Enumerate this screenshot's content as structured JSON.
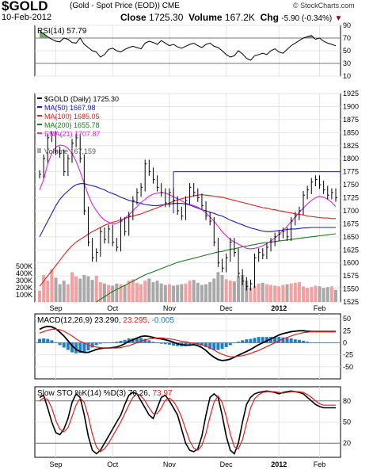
{
  "header": {
    "symbol": "$GOLD",
    "name": "(Gold - Spot Price (EOD))",
    "exchange": "CME",
    "credit": "© StockCharts.com",
    "date": "10-Feb-2012",
    "close_label": "Close",
    "close_value": "1725.30",
    "volume_label": "Volume",
    "volume_value": "167.2K",
    "chg_label": "Chg",
    "chg_value": "-5.90 (-0.34%)"
  },
  "colors": {
    "price": "#000000",
    "ma50": "#1c1cb8",
    "ma100": "#e02020",
    "ma200": "#1a7a1a",
    "ema21": "#e020e0",
    "volume_up": "#f4a0a0",
    "volume_down": "#a8a8a8",
    "histogram": "#1e7ec8",
    "macd_line": "#000000",
    "signal_line": "#e02020",
    "stoch_k": "#000000",
    "stoch_d": "#e02020",
    "down_arrow": "#8b0033"
  },
  "x_axis": {
    "month_labels": [
      "Sep",
      "Oct",
      "Nov",
      "Dec",
      "2012",
      "Feb"
    ]
  },
  "chart_data": [
    {
      "panel": "rsi",
      "type": "line",
      "title": "RSI(14) 57.79",
      "ylim": [
        10,
        90
      ],
      "yticks": [
        90,
        70,
        50,
        30,
        10
      ],
      "reference_lines": [
        70,
        30
      ],
      "values": [
        80,
        77,
        72,
        68,
        65,
        64,
        70,
        68,
        63,
        62,
        70,
        60,
        55,
        50,
        48,
        40,
        44,
        52,
        54,
        50,
        48,
        52,
        55,
        57,
        55,
        53,
        62,
        65,
        63,
        60,
        66,
        62,
        58,
        60,
        56,
        54,
        57,
        60,
        62,
        58,
        55,
        60,
        62,
        57,
        55,
        50,
        44,
        40,
        42,
        50,
        45,
        38,
        35,
        42,
        44,
        46,
        44,
        50,
        53,
        48,
        46,
        52,
        58,
        62,
        66,
        70,
        72,
        74,
        68,
        70,
        65,
        62,
        60,
        57.79
      ]
    },
    {
      "panel": "price",
      "type": "line",
      "title": "$GOLD (Daily) 1725.30",
      "ylim": [
        1525,
        1925
      ],
      "yticks": [
        1925,
        1900,
        1875,
        1850,
        1825,
        1800,
        1775,
        1750,
        1725,
        1700,
        1675,
        1650,
        1625,
        1600,
        1575,
        1550,
        1525
      ],
      "volume_ticks": [
        "500K",
        "400K",
        "300K",
        "200K",
        "100K"
      ],
      "horizontal_lines": [
        1775,
        1695
      ],
      "series": [
        {
          "name": "MA(50) 1667.98",
          "key": "ma50",
          "values": [
            1650,
            1665,
            1680,
            1695,
            1710,
            1722,
            1731,
            1738,
            1745,
            1750,
            1752,
            1752,
            1750,
            1748,
            1746,
            1743,
            1740,
            1736,
            1733,
            1730,
            1726,
            1723,
            1720,
            1718,
            1716,
            1714,
            1712,
            1711,
            1710,
            1710,
            1711,
            1712,
            1713,
            1714,
            1714,
            1714,
            1713,
            1711,
            1708,
            1705,
            1702,
            1700,
            1697,
            1695,
            1692,
            1690,
            1686,
            1682,
            1679,
            1676,
            1673,
            1670,
            1667,
            1665,
            1663,
            1661,
            1660,
            1660,
            1661,
            1662,
            1663,
            1664,
            1665,
            1665,
            1666,
            1667,
            1667,
            1668,
            1668,
            1668,
            1668,
            1668,
            1668,
            1667.98
          ]
        },
        {
          "name": "MA(100) 1685.05",
          "key": "ma100",
          "values": [
            1555,
            1565,
            1575,
            1585,
            1595,
            1605,
            1615,
            1625,
            1633,
            1640,
            1645,
            1650,
            1655,
            1660,
            1664,
            1668,
            1672,
            1675,
            1678,
            1680,
            1683,
            1685,
            1688,
            1690,
            1692,
            1694,
            1697,
            1700,
            1703,
            1706,
            1709,
            1712,
            1715,
            1718,
            1721,
            1723,
            1725,
            1727,
            1729,
            1730,
            1731,
            1730,
            1729,
            1728,
            1727,
            1726,
            1724,
            1722,
            1720,
            1718,
            1716,
            1714,
            1712,
            1710,
            1708,
            1706,
            1705,
            1703,
            1702,
            1700,
            1699,
            1697,
            1696,
            1694,
            1693,
            1692,
            1690,
            1689,
            1688,
            1687,
            1686,
            1686,
            1685,
            1685.05
          ]
        },
        {
          "name": "MA(200) 1655.78",
          "key": "ma200",
          "values": [
            null,
            null,
            null,
            null,
            null,
            null,
            null,
            null,
            null,
            null,
            null,
            null,
            null,
            null,
            1525,
            1530,
            1535,
            1540,
            1545,
            1549,
            1553,
            1557,
            1561,
            1565,
            1569,
            1573,
            1577,
            1580,
            1583,
            1586,
            1589,
            1592,
            1595,
            1598,
            1601,
            1603,
            1605,
            1607,
            1609,
            1611,
            1613,
            1615,
            1617,
            1619,
            1621,
            1622,
            1624,
            1626,
            1627,
            1629,
            1631,
            1632,
            1634,
            1635,
            1637,
            1638,
            1639,
            1640,
            1641,
            1642,
            1643,
            1644,
            1645,
            1646,
            1647,
            1648,
            1649,
            1650,
            1651,
            1652,
            1653,
            1654,
            1655,
            1655.78
          ]
        },
        {
          "name": "EMA(21) 1707.87",
          "key": "ema21",
          "values": [
            1740,
            1760,
            1790,
            1810,
            1822,
            1826,
            1825,
            1820,
            1810,
            1795,
            1775,
            1752,
            1730,
            1712,
            1700,
            1690,
            1682,
            1678,
            1675,
            1676,
            1680,
            1686,
            1692,
            1700,
            1708,
            1716,
            1722,
            1728,
            1732,
            1734,
            1735,
            1734,
            1731,
            1727,
            1723,
            1719,
            1715,
            1712,
            1710,
            1707,
            1702,
            1696,
            1688,
            1680,
            1670,
            1660,
            1652,
            1645,
            1640,
            1636,
            1632,
            1628,
            1627,
            1628,
            1630,
            1633,
            1637,
            1642,
            1648,
            1655,
            1662,
            1670,
            1679,
            1688,
            1697,
            1705,
            1713,
            1720,
            1725,
            1728,
            1726,
            1722,
            1716,
            1707.87
          ]
        }
      ],
      "price": [
        1770,
        1800,
        1840,
        1845,
        1815,
        1810,
        1775,
        1800,
        1830,
        1840,
        1800,
        1700,
        1640,
        1610,
        1620,
        1660,
        1645,
        1665,
        1640,
        1630,
        1680,
        1660,
        1690,
        1720,
        1735,
        1745,
        1790,
        1775,
        1760,
        1745,
        1735,
        1715,
        1735,
        1720,
        1700,
        1690,
        1720,
        1745,
        1735,
        1725,
        1710,
        1690,
        1680,
        1640,
        1600,
        1590,
        1610,
        1640,
        1620,
        1580,
        1565,
        1555,
        1560,
        1610,
        1620,
        1615,
        1630,
        1640,
        1650,
        1655,
        1660,
        1650,
        1680,
        1690,
        1700,
        1730,
        1740,
        1755,
        1760,
        1750,
        1740,
        1730,
        1735,
        1725.3
      ],
      "volume": [
        160,
        380,
        300,
        460,
        340,
        250,
        300,
        250,
        420,
        360,
        330,
        380,
        360,
        310,
        370,
        280,
        260,
        240,
        230,
        260,
        250,
        240,
        300,
        320,
        270,
        250,
        300,
        330,
        280,
        300,
        260,
        240,
        250,
        230,
        240,
        250,
        260,
        300,
        310,
        270,
        240,
        250,
        280,
        330,
        420,
        380,
        320,
        300,
        290,
        360,
        380,
        300,
        200,
        230,
        260,
        270,
        250,
        240,
        230,
        220,
        240,
        250,
        260,
        270,
        280,
        220,
        200,
        210,
        230,
        220,
        200,
        210,
        220,
        167.159
      ],
      "legend_extra": "Volume 167,159"
    },
    {
      "panel": "macd",
      "type": "line",
      "title": "MACD(12,26,9)",
      "title_values": [
        "23.290",
        "23.295",
        "-0.005"
      ],
      "ylim": [
        -75,
        60
      ],
      "yticks": [
        50,
        25,
        0,
        -25,
        -50
      ],
      "series": [
        {
          "name": "MACD",
          "key": "macd_line",
          "values": [
            28,
            32,
            34,
            33,
            29,
            22,
            14,
            4,
            -6,
            -14,
            -18,
            -20,
            -20,
            -17,
            -14,
            -12,
            -11,
            -11,
            -10,
            -9,
            -6,
            -2,
            3,
            6,
            10,
            13,
            14,
            13,
            11,
            9,
            8,
            6,
            4,
            1,
            -2,
            -4,
            -5,
            -5,
            -4,
            -6,
            -10,
            -16,
            -24,
            -30,
            -35,
            -37,
            -36,
            -34,
            -30,
            -26,
            -22,
            -18,
            -14,
            -9,
            -4,
            0,
            4,
            8,
            12,
            16,
            19,
            21,
            23,
            24,
            25,
            25,
            24,
            23.29,
            23.29,
            23.29,
            23.29,
            23.29,
            23.29,
            23.29
          ]
        },
        {
          "name": "Signal",
          "key": "signal_line",
          "values": [
            20,
            23,
            26,
            28,
            28,
            27,
            24,
            19,
            14,
            8,
            3,
            -1,
            -4,
            -7,
            -9,
            -10,
            -11,
            -11,
            -11,
            -11,
            -10,
            -8,
            -6,
            -3,
            0,
            3,
            6,
            8,
            9,
            10,
            10,
            9,
            8,
            7,
            5,
            3,
            2,
            0,
            -1,
            -2,
            -4,
            -7,
            -11,
            -15,
            -20,
            -24,
            -27,
            -29,
            -29,
            -28,
            -27,
            -25,
            -22,
            -19,
            -16,
            -12,
            -8,
            -4,
            0,
            4,
            8,
            11,
            14,
            17,
            19,
            21,
            22,
            23,
            23.295,
            23.295,
            23.295,
            23.295,
            23.295,
            23.295
          ]
        },
        {
          "name": "Histogram",
          "key": "histogram",
          "values": [
            8,
            9,
            8,
            5,
            1,
            -5,
            -10,
            -15,
            -20,
            -22,
            -21,
            -19,
            -16,
            -10,
            -5,
            -2,
            0,
            0,
            1,
            2,
            4,
            6,
            9,
            9,
            10,
            10,
            8,
            5,
            2,
            -1,
            -2,
            -3,
            -4,
            -6,
            -7,
            -7,
            -7,
            -5,
            -3,
            -4,
            -6,
            -9,
            -13,
            -15,
            -15,
            -13,
            -9,
            -5,
            -1,
            2,
            5,
            7,
            8,
            10,
            12,
            12,
            12,
            12,
            12,
            12,
            11,
            10,
            9,
            7,
            6,
            4,
            2,
            0,
            0,
            0,
            0,
            0,
            0,
            -0.005
          ]
        }
      ]
    },
    {
      "panel": "stochastic",
      "type": "line",
      "title": "Slow STO %K(14) %D(3)",
      "title_values": [
        "70.26",
        "73.97"
      ],
      "ylim": [
        0,
        100
      ],
      "yticks": [
        80,
        50,
        20
      ],
      "reference_lines": [
        80,
        20
      ],
      "series": [
        {
          "name": "%K",
          "key": "stoch_k",
          "values": [
            85,
            88,
            70,
            50,
            35,
            32,
            40,
            55,
            78,
            90,
            85,
            60,
            30,
            10,
            5,
            10,
            20,
            30,
            40,
            50,
            60,
            75,
            88,
            92,
            90,
            80,
            70,
            60,
            55,
            70,
            85,
            88,
            80,
            70,
            60,
            40,
            20,
            10,
            8,
            12,
            30,
            60,
            85,
            90,
            85,
            60,
            30,
            10,
            5,
            20,
            50,
            75,
            85,
            90,
            92,
            93,
            94,
            93,
            92,
            90,
            92,
            93,
            94,
            93,
            92,
            90,
            85,
            80,
            75,
            72,
            70.26,
            70.26,
            70.26,
            70.26
          ]
        },
        {
          "name": "%D",
          "key": "stoch_d",
          "values": [
            80,
            84,
            82,
            70,
            52,
            40,
            36,
            42,
            58,
            74,
            84,
            78,
            58,
            33,
            15,
            8,
            12,
            20,
            30,
            40,
            50,
            62,
            74,
            85,
            90,
            87,
            80,
            70,
            62,
            62,
            70,
            81,
            84,
            79,
            70,
            57,
            40,
            23,
            13,
            10,
            17,
            34,
            58,
            78,
            87,
            78,
            58,
            33,
            15,
            12,
            25,
            48,
            70,
            83,
            89,
            92,
            93,
            93,
            93,
            92,
            91,
            92,
            93,
            93,
            93,
            92,
            89,
            85,
            80,
            76,
            73.97,
            73.97,
            73.97,
            73.97
          ]
        }
      ]
    }
  ]
}
